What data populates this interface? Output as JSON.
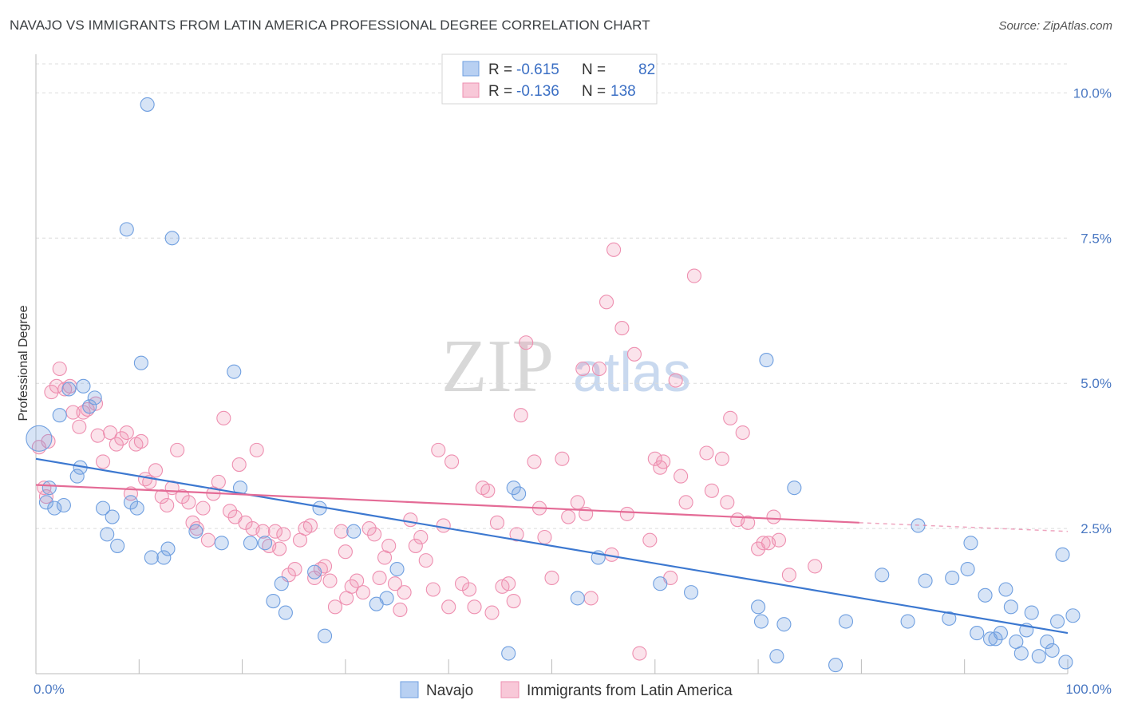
{
  "title": "NAVAJO VS IMMIGRANTS FROM LATIN AMERICA PROFESSIONAL DEGREE CORRELATION CHART",
  "source": "Source: ZipAtlas.com",
  "watermark": {
    "zip": "ZIP",
    "atlas": "atlas"
  },
  "colors": {
    "navajo": "#6f9fe0",
    "navajo_line": "#3c78d0",
    "latam": "#ee8fb0",
    "latam_line": "#e46b96",
    "tick": "#4a78c2"
  },
  "chart_data": {
    "type": "scatter",
    "title": "NAVAJO VS IMMIGRANTS FROM LATIN AMERICA PROFESSIONAL DEGREE CORRELATION CHART",
    "xlabel": "",
    "ylabel": "Professional Degree",
    "xlim": [
      0,
      100
    ],
    "ylim": [
      0,
      10.5
    ],
    "x_tick_labels": [
      "0.0%",
      "100.0%"
    ],
    "y_ticks": [
      2.5,
      5.0,
      7.5,
      10.0
    ],
    "y_tick_labels": [
      "2.5%",
      "5.0%",
      "7.5%",
      "10.0%"
    ],
    "grid": true,
    "legend_top": [
      {
        "r_label": "R =",
        "r_value": "-0.615",
        "n_label": "N =",
        "n_value": "82"
      },
      {
        "r_label": "R =",
        "r_value": "-0.136",
        "n_label": "N =",
        "n_value": "138"
      }
    ],
    "series": [
      {
        "name": "Navajo",
        "trend": {
          "x0": 0,
          "y0": 3.7,
          "x1": 100,
          "y1": 0.7
        },
        "points": [
          [
            0.3,
            4.05
          ],
          [
            1.0,
            2.95
          ],
          [
            1.3,
            3.2
          ],
          [
            1.8,
            2.85
          ],
          [
            2.3,
            4.45
          ],
          [
            2.7,
            2.9
          ],
          [
            3.2,
            4.9
          ],
          [
            4.0,
            3.4
          ],
          [
            4.3,
            3.55
          ],
          [
            4.6,
            4.95
          ],
          [
            5.2,
            4.6
          ],
          [
            5.7,
            4.75
          ],
          [
            6.5,
            2.85
          ],
          [
            6.9,
            2.4
          ],
          [
            7.4,
            2.7
          ],
          [
            7.9,
            2.2
          ],
          [
            8.8,
            7.65
          ],
          [
            9.2,
            2.95
          ],
          [
            9.8,
            2.85
          ],
          [
            10.2,
            5.35
          ],
          [
            10.8,
            9.8
          ],
          [
            11.2,
            2.0
          ],
          [
            12.4,
            2.0
          ],
          [
            12.8,
            2.15
          ],
          [
            13.2,
            7.5
          ],
          [
            15.5,
            2.45
          ],
          [
            18.0,
            2.25
          ],
          [
            19.2,
            5.2
          ],
          [
            19.8,
            3.2
          ],
          [
            20.8,
            2.25
          ],
          [
            22.2,
            2.25
          ],
          [
            23.0,
            1.25
          ],
          [
            23.8,
            1.55
          ],
          [
            24.2,
            1.05
          ],
          [
            27.0,
            1.75
          ],
          [
            27.5,
            2.85
          ],
          [
            28.0,
            0.65
          ],
          [
            30.8,
            2.45
          ],
          [
            33.0,
            1.2
          ],
          [
            34.0,
            1.3
          ],
          [
            35.0,
            1.8
          ],
          [
            45.8,
            0.35
          ],
          [
            46.3,
            3.2
          ],
          [
            46.8,
            3.1
          ],
          [
            52.5,
            1.3
          ],
          [
            54.5,
            2.0
          ],
          [
            60.5,
            1.55
          ],
          [
            63.5,
            1.4
          ],
          [
            70.0,
            1.15
          ],
          [
            70.3,
            0.9
          ],
          [
            70.8,
            5.4
          ],
          [
            71.8,
            0.3
          ],
          [
            72.5,
            0.85
          ],
          [
            73.5,
            3.2
          ],
          [
            77.5,
            0.15
          ],
          [
            78.5,
            0.9
          ],
          [
            82.0,
            1.7
          ],
          [
            84.5,
            0.9
          ],
          [
            85.5,
            2.55
          ],
          [
            86.2,
            1.6
          ],
          [
            88.5,
            0.95
          ],
          [
            88.8,
            1.65
          ],
          [
            90.3,
            1.8
          ],
          [
            90.6,
            2.25
          ],
          [
            91.2,
            0.7
          ],
          [
            92.0,
            1.35
          ],
          [
            92.5,
            0.6
          ],
          [
            93.0,
            0.6
          ],
          [
            93.5,
            0.7
          ],
          [
            94.0,
            1.45
          ],
          [
            94.5,
            1.15
          ],
          [
            95.0,
            0.55
          ],
          [
            95.5,
            0.35
          ],
          [
            96.0,
            0.75
          ],
          [
            96.5,
            1.05
          ],
          [
            97.2,
            0.3
          ],
          [
            98.0,
            0.55
          ],
          [
            98.5,
            0.4
          ],
          [
            99.0,
            0.9
          ],
          [
            99.5,
            2.05
          ],
          [
            99.8,
            0.2
          ],
          [
            100.5,
            1.0
          ]
        ]
      },
      {
        "name": "Immigrants from Latin America",
        "trend": {
          "x0": 0,
          "y0": 3.25,
          "x1": 79.8,
          "y1": 2.6,
          "dash_to_x": 100,
          "dash_to_y": 2.45
        },
        "points": [
          [
            0.3,
            3.9
          ],
          [
            1.0,
            3.05
          ],
          [
            1.2,
            4.0
          ],
          [
            1.5,
            4.85
          ],
          [
            2.0,
            4.95
          ],
          [
            2.3,
            5.25
          ],
          [
            2.8,
            4.9
          ],
          [
            3.3,
            4.95
          ],
          [
            3.6,
            4.5
          ],
          [
            4.2,
            4.25
          ],
          [
            4.6,
            4.5
          ],
          [
            5.0,
            4.55
          ],
          [
            5.8,
            4.65
          ],
          [
            6.5,
            3.65
          ],
          [
            7.2,
            4.15
          ],
          [
            7.8,
            3.95
          ],
          [
            8.3,
            4.05
          ],
          [
            8.8,
            4.15
          ],
          [
            9.2,
            3.1
          ],
          [
            9.7,
            3.95
          ],
          [
            10.2,
            4.0
          ],
          [
            10.6,
            3.35
          ],
          [
            11.0,
            3.3
          ],
          [
            11.6,
            3.5
          ],
          [
            12.2,
            3.05
          ],
          [
            12.7,
            2.9
          ],
          [
            13.2,
            3.2
          ],
          [
            13.7,
            3.85
          ],
          [
            14.2,
            3.05
          ],
          [
            14.8,
            2.95
          ],
          [
            15.2,
            2.6
          ],
          [
            15.6,
            2.5
          ],
          [
            16.2,
            2.85
          ],
          [
            16.7,
            2.3
          ],
          [
            17.2,
            3.1
          ],
          [
            17.7,
            3.3
          ],
          [
            18.2,
            4.4
          ],
          [
            18.8,
            2.8
          ],
          [
            19.3,
            2.7
          ],
          [
            19.7,
            3.6
          ],
          [
            20.3,
            2.6
          ],
          [
            21.0,
            2.5
          ],
          [
            21.4,
            3.85
          ],
          [
            22.0,
            2.45
          ],
          [
            22.6,
            2.2
          ],
          [
            23.2,
            2.45
          ],
          [
            23.6,
            2.15
          ],
          [
            24.0,
            2.4
          ],
          [
            24.5,
            1.7
          ],
          [
            25.1,
            1.8
          ],
          [
            25.6,
            2.3
          ],
          [
            26.1,
            2.5
          ],
          [
            26.6,
            2.55
          ],
          [
            27.0,
            1.65
          ],
          [
            27.6,
            1.8
          ],
          [
            28.0,
            1.85
          ],
          [
            28.5,
            1.6
          ],
          [
            29.0,
            1.15
          ],
          [
            29.6,
            2.45
          ],
          [
            30.1,
            1.3
          ],
          [
            30.6,
            1.5
          ],
          [
            31.1,
            1.6
          ],
          [
            31.7,
            1.4
          ],
          [
            32.3,
            2.5
          ],
          [
            32.8,
            2.4
          ],
          [
            33.3,
            1.65
          ],
          [
            33.8,
            2.0
          ],
          [
            34.2,
            2.2
          ],
          [
            34.8,
            1.55
          ],
          [
            35.3,
            1.1
          ],
          [
            35.7,
            1.4
          ],
          [
            36.3,
            2.65
          ],
          [
            36.8,
            2.2
          ],
          [
            37.3,
            2.35
          ],
          [
            37.8,
            1.95
          ],
          [
            38.5,
            1.45
          ],
          [
            39.0,
            3.85
          ],
          [
            39.5,
            2.55
          ],
          [
            40.0,
            1.15
          ],
          [
            40.3,
            3.65
          ],
          [
            41.3,
            1.55
          ],
          [
            42.0,
            1.45
          ],
          [
            42.5,
            1.15
          ],
          [
            43.3,
            3.2
          ],
          [
            43.8,
            3.15
          ],
          [
            44.2,
            1.05
          ],
          [
            44.7,
            2.6
          ],
          [
            45.2,
            1.5
          ],
          [
            45.8,
            1.55
          ],
          [
            46.3,
            1.25
          ],
          [
            46.6,
            2.4
          ],
          [
            47.0,
            4.45
          ],
          [
            47.5,
            5.7
          ],
          [
            48.3,
            3.65
          ],
          [
            48.8,
            2.85
          ],
          [
            49.3,
            2.35
          ],
          [
            50.0,
            1.65
          ],
          [
            51.0,
            3.7
          ],
          [
            51.6,
            2.7
          ],
          [
            52.5,
            2.95
          ],
          [
            53.0,
            5.25
          ],
          [
            53.3,
            2.75
          ],
          [
            53.8,
            1.3
          ],
          [
            54.6,
            5.25
          ],
          [
            55.3,
            6.4
          ],
          [
            55.8,
            2.05
          ],
          [
            56.0,
            7.3
          ],
          [
            56.8,
            5.95
          ],
          [
            57.3,
            2.75
          ],
          [
            58.0,
            5.5
          ],
          [
            58.5,
            0.35
          ],
          [
            59.5,
            2.3
          ],
          [
            60.0,
            3.7
          ],
          [
            60.5,
            3.55
          ],
          [
            60.8,
            3.65
          ],
          [
            61.5,
            1.65
          ],
          [
            62.0,
            5.05
          ],
          [
            62.5,
            3.4
          ],
          [
            63.0,
            2.95
          ],
          [
            63.8,
            6.85
          ],
          [
            65.0,
            3.8
          ],
          [
            65.5,
            3.15
          ],
          [
            66.5,
            3.7
          ],
          [
            67.0,
            2.95
          ],
          [
            67.3,
            4.4
          ],
          [
            68.0,
            2.65
          ],
          [
            68.5,
            4.15
          ],
          [
            69.0,
            2.6
          ],
          [
            70.0,
            2.15
          ],
          [
            70.5,
            2.25
          ],
          [
            71.0,
            2.25
          ],
          [
            71.5,
            2.7
          ],
          [
            72.0,
            2.3
          ],
          [
            73.0,
            1.7
          ],
          [
            75.5,
            1.85
          ],
          [
            0.8,
            3.2
          ],
          [
            6.0,
            4.1
          ],
          [
            30.0,
            2.1
          ]
        ]
      }
    ]
  },
  "legend_bottom": {
    "navajo": "Navajo",
    "latam": "Immigrants from Latin America"
  }
}
